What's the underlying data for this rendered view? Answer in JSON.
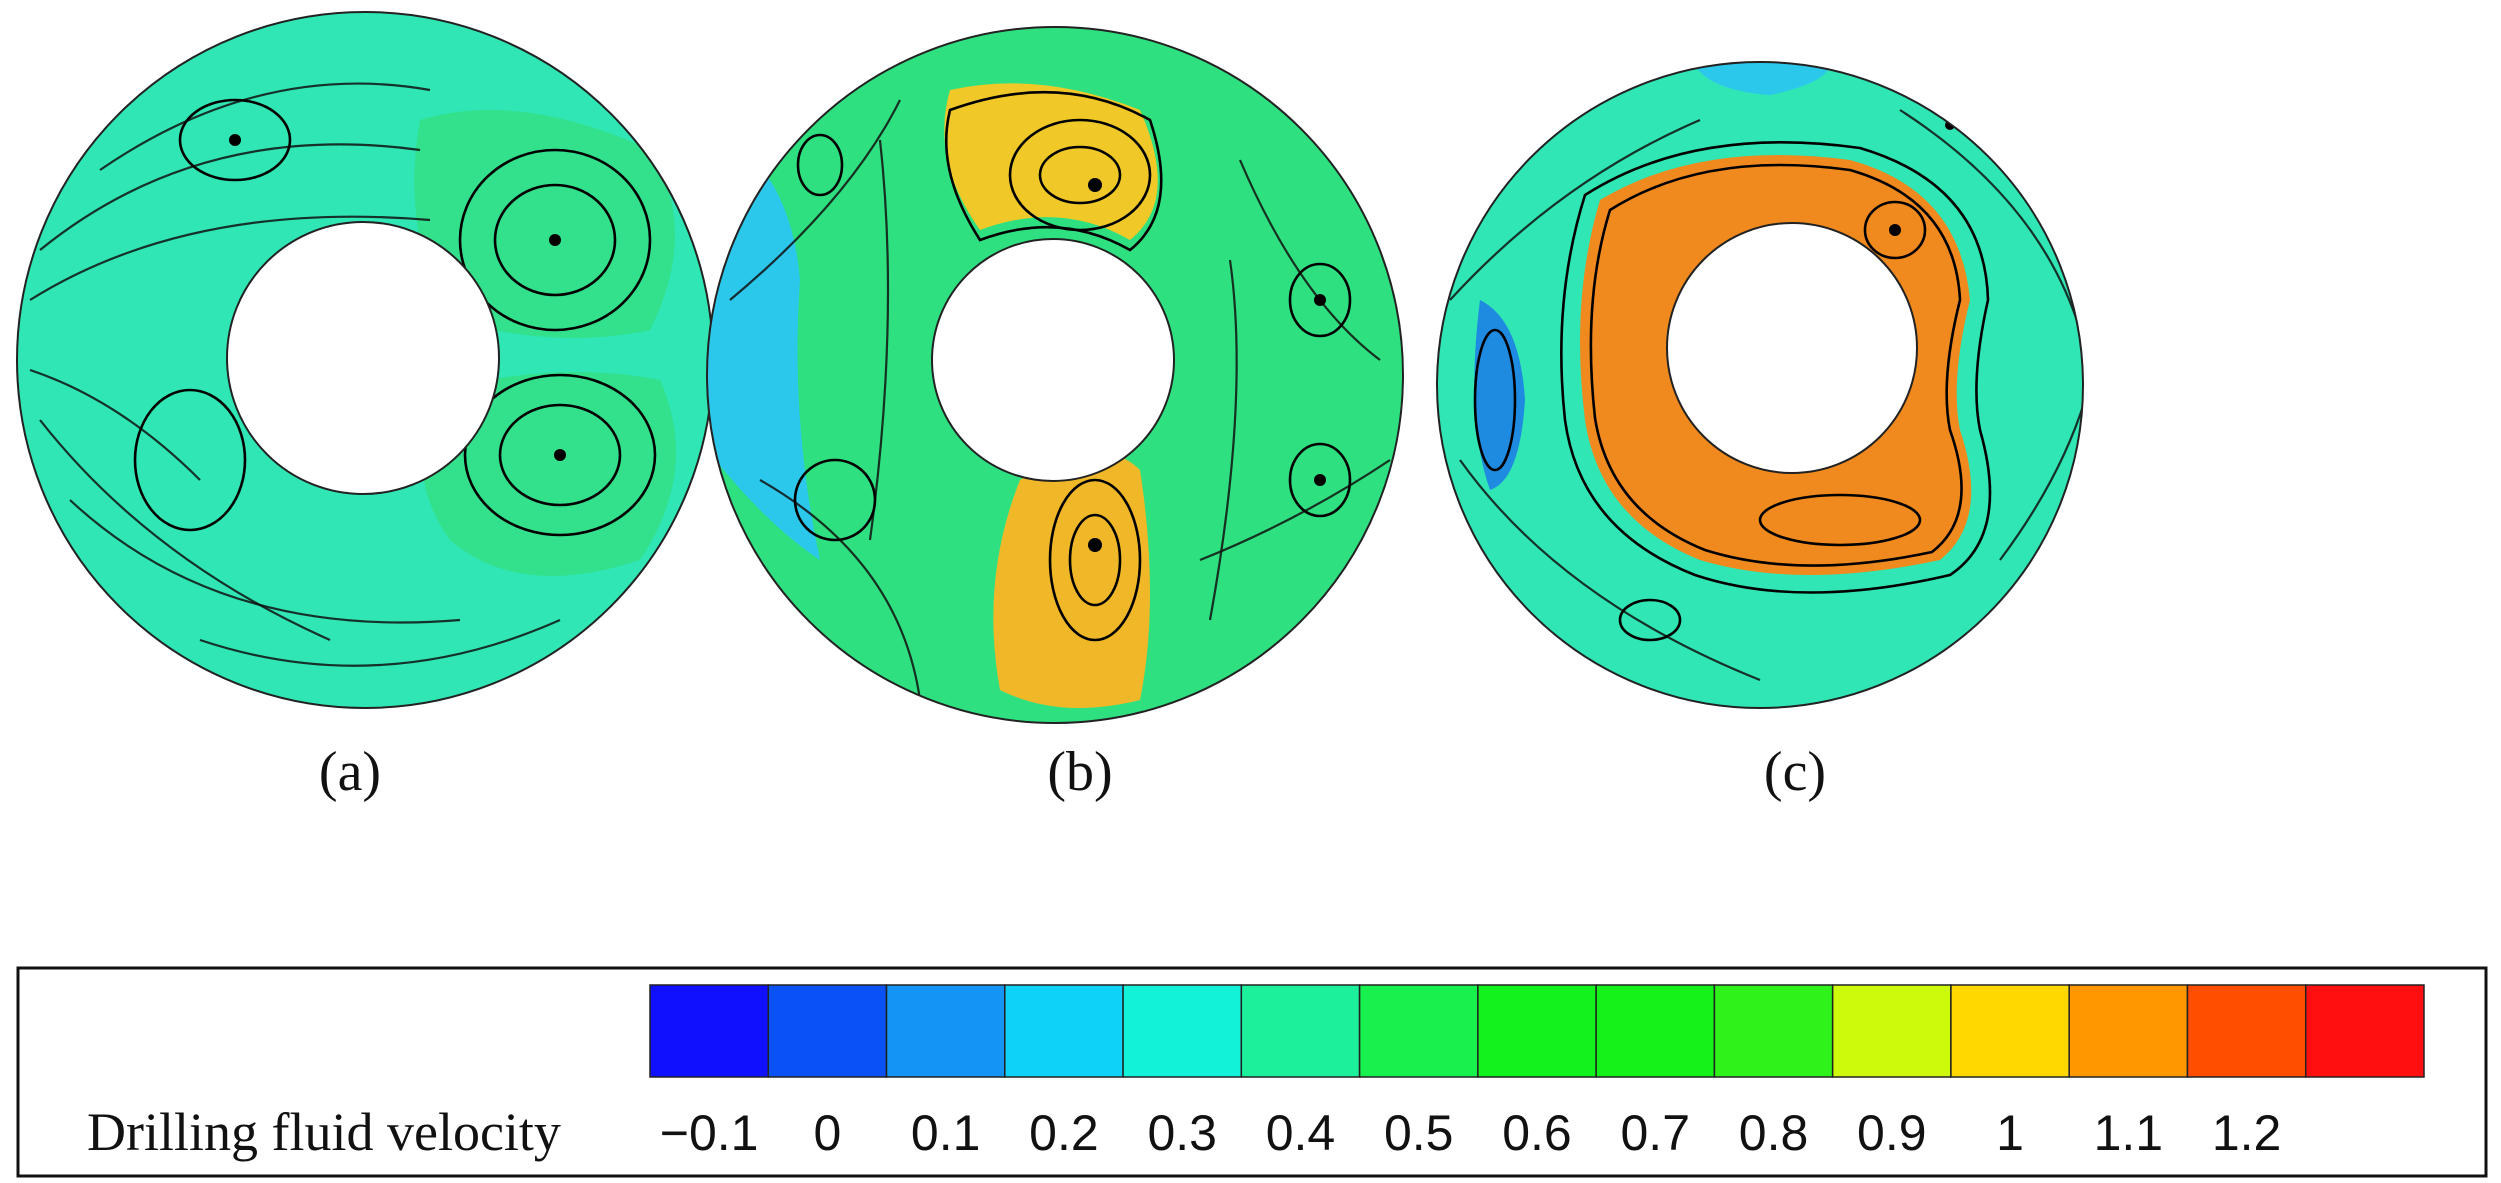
{
  "panels": [
    {
      "label": "(a)",
      "base_color": "#2fe6b4",
      "regions": [
        {
          "color": "#33e08c",
          "shape": "right-vortex-upper"
        },
        {
          "color": "#33e08c",
          "shape": "right-vortex-lower"
        }
      ]
    },
    {
      "label": "(b)",
      "base_color": "#2fe080",
      "regions": [
        {
          "color": "#f0c828",
          "shape": "top-lobe"
        },
        {
          "color": "#f0b828",
          "shape": "bottom-lobe"
        },
        {
          "color": "#2cc8ec",
          "shape": "left-edge"
        }
      ]
    },
    {
      "label": "(c)",
      "base_color": "#2fe6b4",
      "regions": [
        {
          "color": "#f08a1e",
          "shape": "inner-ring"
        },
        {
          "color": "#2cc8ec",
          "shape": "top-patch"
        },
        {
          "color": "#1f8be0",
          "shape": "left-patch"
        }
      ]
    }
  ],
  "legend": {
    "title": "Drilling fluid velocity",
    "tick_labels": [
      "−0.1",
      "0",
      "0.1",
      "0.2",
      "0.3",
      "0.4",
      "0.5",
      "0.6",
      "0.7",
      "0.8",
      "0.9",
      "1",
      "1.1",
      "1.2"
    ],
    "colors": [
      "#1010ff",
      "#0a52f5",
      "#1495f5",
      "#0fd2f8",
      "#12f2d8",
      "#1cf09a",
      "#18f04e",
      "#12f21c",
      "#14f21a",
      "#2ef21a",
      "#cdfa0a",
      "#ffd800",
      "#ff9800",
      "#ff4e00",
      "#ff0f0f"
    ]
  }
}
